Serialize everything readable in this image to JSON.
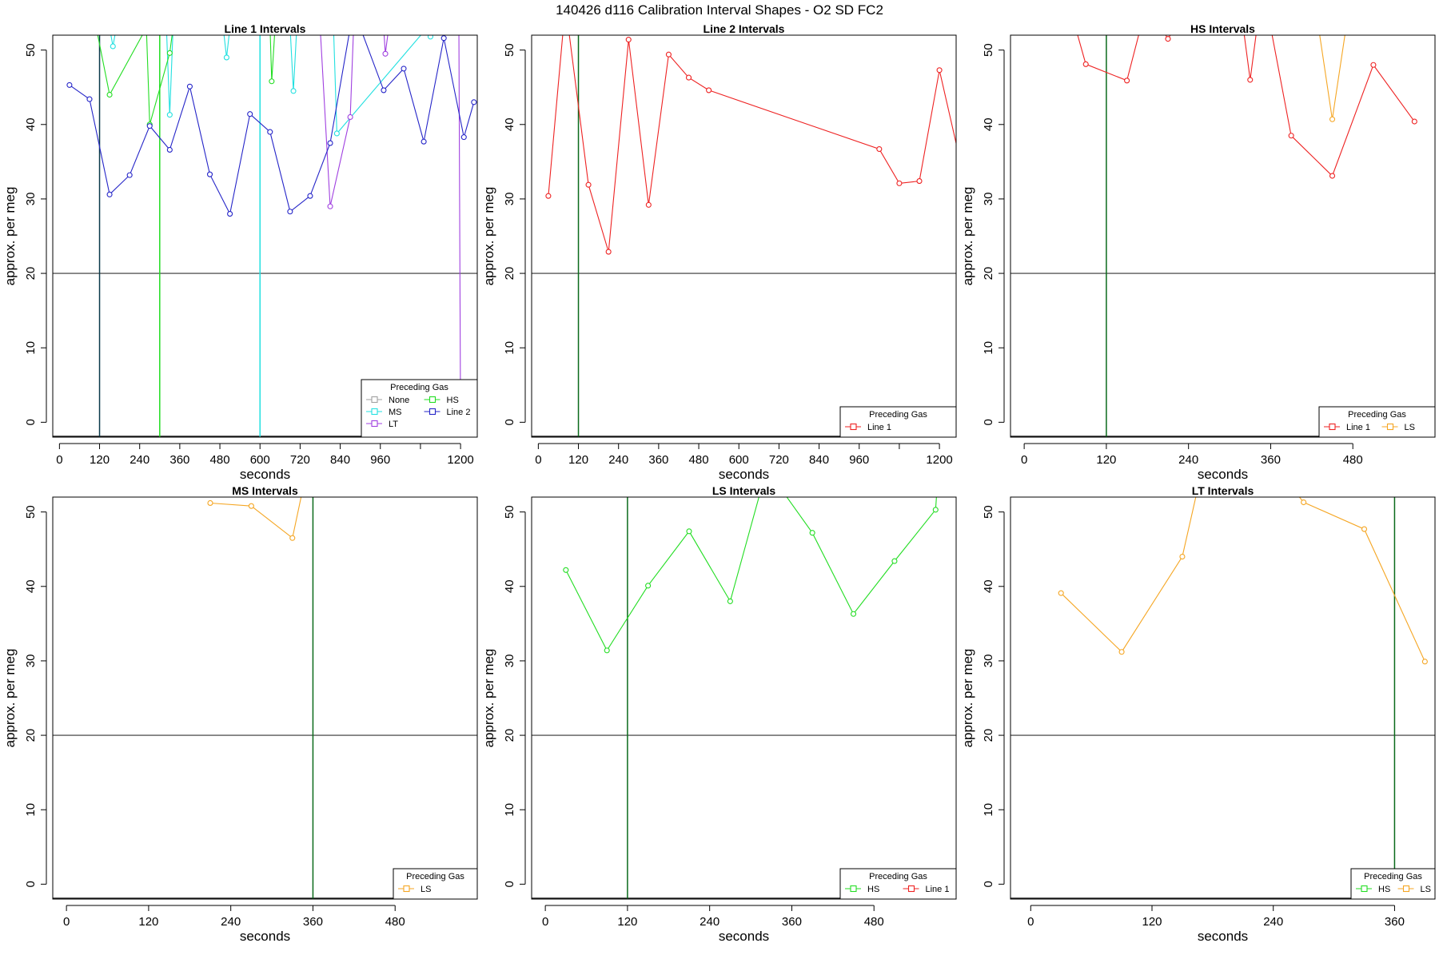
{
  "main_title": "140426   d116   Calibration Interval Shapes - O2 SD FC2",
  "colors": {
    "None": "#a0a0a0",
    "MS": "#22e0e0",
    "LT": "#a040e0",
    "HS": "#22dd22",
    "Line 2": "#2525c8",
    "Line 1": "#ee2222",
    "LS": "#f5a623",
    "hline": "#333333",
    "vline_dark": "#0a6a1a"
  },
  "chart_data": [
    {
      "type": "line",
      "title": "Line 1 Intervals",
      "xlabel": "seconds",
      "ylabel": "approx. per meg",
      "xlim": [
        -20,
        1250
      ],
      "ylim": [
        -2,
        52
      ],
      "xticks": [
        0,
        120,
        240,
        360,
        480,
        600,
        720,
        840,
        960,
        1080,
        1200
      ],
      "xtick_labels": [
        "0",
        "120",
        "240",
        "360",
        "480",
        "600",
        "720",
        "840",
        "960",
        "",
        "1200"
      ],
      "yticks": [
        0,
        10,
        20,
        30,
        40,
        50
      ],
      "hline": 20,
      "vlines": [
        {
          "x": 120,
          "color": "#0a3a4a"
        },
        {
          "x": 300,
          "color": "#22dd22"
        },
        {
          "x": 600,
          "color": "#22e0e0"
        }
      ],
      "legend": {
        "title": "Preceding Gas",
        "position": "bottom-right",
        "entries": [
          "None",
          "MS",
          "LT",
          "HS",
          "Line 2"
        ]
      },
      "series": [
        {
          "name": "MS",
          "x": [
            150,
            160,
            170,
            320,
            330,
            340,
            490,
            500,
            510,
            690,
            700,
            710,
            820,
            830,
            1100,
            1110
          ],
          "y": [
            53,
            50.5,
            53,
            53,
            41.3,
            53,
            53,
            49,
            53,
            53,
            44.5,
            53,
            53,
            38.8,
            53,
            51.8
          ]
        },
        {
          "name": "HS",
          "x": [
            110,
            150,
            260,
            270,
            330,
            340,
            630,
            635,
            645
          ],
          "y": [
            53,
            44,
            53,
            40,
            49.6,
            53,
            53,
            45.8,
            53
          ]
        },
        {
          "name": "LT",
          "x": [
            780,
            810,
            870,
            880,
            970,
            975,
            985,
            1170,
            1195,
            1200
          ],
          "y": [
            53,
            29,
            41,
            53,
            53,
            49.5,
            53,
            53,
            53,
            0
          ]
        },
        {
          "name": "Line 2",
          "x": [
            30,
            90,
            150,
            210,
            270,
            330,
            390,
            450,
            510,
            570,
            630,
            690,
            750,
            810,
            870,
            900,
            970,
            1030,
            1090,
            1150,
            1210,
            1240
          ],
          "y": [
            45.3,
            43.4,
            30.6,
            33.2,
            39.8,
            36.6,
            45.1,
            33.3,
            28,
            41.4,
            39,
            28.3,
            30.4,
            37.5,
            53,
            53,
            44.6,
            47.5,
            37.7,
            51.6,
            38.3,
            43
          ]
        }
      ]
    },
    {
      "type": "line",
      "title": "Line 2 Intervals",
      "xlabel": "seconds",
      "ylabel": "approx. per meg",
      "xlim": [
        -20,
        1250
      ],
      "ylim": [
        -2,
        52
      ],
      "xticks": [
        0,
        120,
        240,
        360,
        480,
        600,
        720,
        840,
        960,
        1080,
        1200
      ],
      "xtick_labels": [
        "0",
        "120",
        "240",
        "360",
        "480",
        "600",
        "720",
        "840",
        "960",
        "",
        "1200"
      ],
      "yticks": [
        0,
        10,
        20,
        30,
        40,
        50
      ],
      "hline": 20,
      "vlines": [
        {
          "x": 120,
          "color": "#0a6a1a"
        }
      ],
      "legend": {
        "title": "Preceding Gas",
        "position": "bottom-right",
        "entries": [
          "Line 1"
        ]
      },
      "series": [
        {
          "name": "Line 1",
          "x": [
            30,
            75,
            90,
            150,
            210,
            270,
            330,
            390,
            450,
            510,
            1020,
            1080,
            1140,
            1200,
            1260
          ],
          "y": [
            30.4,
            53,
            53,
            31.9,
            22.9,
            51.4,
            29.2,
            49.4,
            46.3,
            44.6,
            36.7,
            32.1,
            32.4,
            47.3,
            35.5
          ]
        }
      ]
    },
    {
      "type": "line",
      "title": "HS Intervals",
      "xlabel": "seconds",
      "ylabel": "approx. per meg",
      "xlim": [
        -20,
        600
      ],
      "ylim": [
        -2,
        52
      ],
      "xticks": [
        0,
        120,
        240,
        360,
        480
      ],
      "xtick_labels": [
        "0",
        "120",
        "240",
        "360",
        "480"
      ],
      "yticks": [
        0,
        10,
        20,
        30,
        40,
        50
      ],
      "hline": 20,
      "vlines": [
        {
          "x": 120,
          "color": "#0a6a1a"
        }
      ],
      "legend": {
        "title": "Preceding Gas",
        "position": "bottom-right",
        "entries": [
          "Line 1",
          "LS"
        ]
      },
      "series": [
        {
          "name": "Line 1",
          "x": [
            75,
            90,
            150,
            170,
            200,
            210,
            220,
            320,
            330,
            340,
            360,
            390,
            450,
            510,
            570
          ],
          "y": [
            53,
            48.1,
            45.9,
            53,
            53,
            51.5,
            53,
            53,
            46,
            53,
            53,
            38.5,
            33.1,
            48,
            40.4
          ]
        },
        {
          "name": "LS",
          "x": [
            430,
            450,
            470
          ],
          "y": [
            53,
            40.7,
            53
          ]
        }
      ]
    },
    {
      "type": "line",
      "title": "MS Intervals",
      "xlabel": "seconds",
      "ylabel": "approx. per meg",
      "xlim": [
        -20,
        600
      ],
      "ylim": [
        -2,
        52
      ],
      "xticks": [
        0,
        120,
        240,
        360,
        480
      ],
      "xtick_labels": [
        "0",
        "120",
        "240",
        "360",
        "480"
      ],
      "yticks": [
        0,
        10,
        20,
        30,
        40,
        50
      ],
      "hline": 20,
      "vlines": [
        {
          "x": 360,
          "color": "#0a6a1a"
        }
      ],
      "legend": {
        "title": "Preceding Gas",
        "position": "bottom-right",
        "entries": [
          "LS"
        ]
      },
      "series": [
        {
          "name": "LS",
          "x": [
            210,
            270,
            330,
            345
          ],
          "y": [
            51.2,
            50.8,
            46.5,
            53
          ]
        }
      ]
    },
    {
      "type": "line",
      "title": "LS Intervals",
      "xlabel": "seconds",
      "ylabel": "approx. per meg",
      "xlim": [
        -20,
        600
      ],
      "ylim": [
        -2,
        52
      ],
      "xticks": [
        0,
        120,
        240,
        360,
        480
      ],
      "xtick_labels": [
        "0",
        "120",
        "240",
        "360",
        "480"
      ],
      "yticks": [
        0,
        10,
        20,
        30,
        40,
        50
      ],
      "hline": 20,
      "vlines": [
        {
          "x": 120,
          "color": "#0a6a1a"
        }
      ],
      "legend": {
        "title": "Preceding Gas",
        "position": "bottom-right",
        "entries": [
          "HS",
          "Line 1"
        ]
      },
      "series": [
        {
          "name": "HS",
          "x": [
            30,
            90,
            150,
            210,
            270,
            315,
            345,
            390,
            450,
            510,
            570,
            572
          ],
          "y": [
            42.2,
            31.4,
            40.1,
            47.4,
            38,
            53,
            53,
            47.2,
            36.3,
            43.4,
            50.3,
            53
          ]
        }
      ]
    },
    {
      "type": "line",
      "title": "LT Intervals",
      "xlabel": "seconds",
      "ylabel": "approx. per meg",
      "xlim": [
        -20,
        400
      ],
      "ylim": [
        -2,
        52
      ],
      "xticks": [
        0,
        120,
        240,
        360
      ],
      "xtick_labels": [
        "0",
        "120",
        "240",
        "360"
      ],
      "yticks": [
        0,
        10,
        20,
        30,
        40,
        50
      ],
      "hline": 20,
      "vlines": [
        {
          "x": 360,
          "color": "#0a6a1a"
        }
      ],
      "legend": {
        "title": "Preceding Gas",
        "position": "bottom-right",
        "entries": [
          "HS",
          "LS"
        ]
      },
      "series": [
        {
          "name": "LS",
          "x": [
            30,
            90,
            150,
            165,
            260,
            270,
            330,
            390
          ],
          "y": [
            39.1,
            31.2,
            44,
            53,
            53,
            51.3,
            47.7,
            29.9
          ]
        }
      ]
    }
  ]
}
